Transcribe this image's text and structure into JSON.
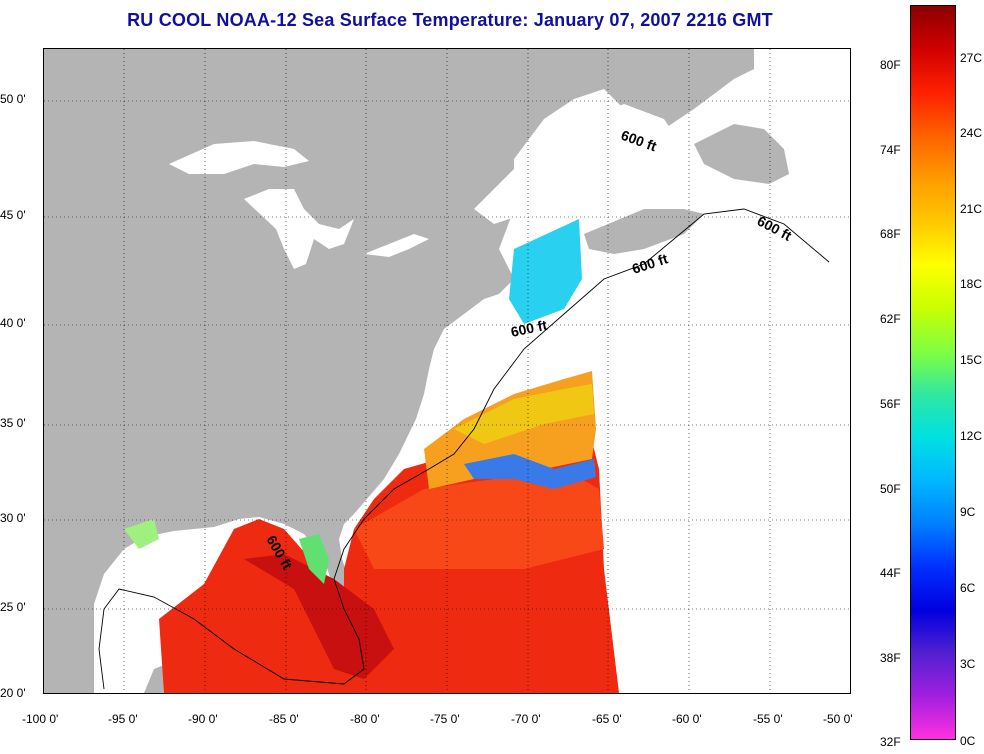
{
  "title": "RU COOL  NOAA-12  Sea Surface Temperature:  January 07, 2007 2216 GMT",
  "map": {
    "lon_range": [
      -100,
      -50
    ],
    "lat_range": [
      20,
      52.5
    ],
    "lon_ticks": [
      "-100 0'",
      "-95 0'",
      "-90 0'",
      "-85 0'",
      "-80 0'",
      "-75 0'",
      "-70 0'",
      "-65 0'",
      "-60 0'",
      "-55 0'",
      "-50 0'"
    ],
    "lat_ticks": [
      "20 0'",
      "25 0'",
      "30 0'",
      "35 0'",
      "40 0'",
      "45 0'",
      "50 0'"
    ],
    "land_color": "#b4b4b4",
    "no_data_color": "#ffffff",
    "grid": "dotted",
    "contours": [
      {
        "label": "600 ft"
      },
      {
        "label": "600 ft"
      },
      {
        "label": "600 ft"
      },
      {
        "label": "600 ft"
      },
      {
        "label": "600 ft"
      }
    ]
  },
  "colorbar": {
    "fahrenheit_labels": [
      "80F",
      "74F",
      "68F",
      "62F",
      "56F",
      "50F",
      "44F",
      "38F",
      "32F"
    ],
    "celsius_labels": [
      "27C",
      "24C",
      "21C",
      "18C",
      "15C",
      "12C",
      "9C",
      "6C",
      "3C",
      "0C"
    ],
    "colors_top_to_bottom": [
      "#8b0000",
      "#d00000",
      "#ff2000",
      "#ff6000",
      "#ff9a00",
      "#ffc800",
      "#ffff00",
      "#c8ff00",
      "#80ff40",
      "#30e8a0",
      "#00e0e0",
      "#00b8ff",
      "#0080ff",
      "#0030ff",
      "#0000e0",
      "#5020d0",
      "#a020e0",
      "#ff30e0"
    ]
  }
}
